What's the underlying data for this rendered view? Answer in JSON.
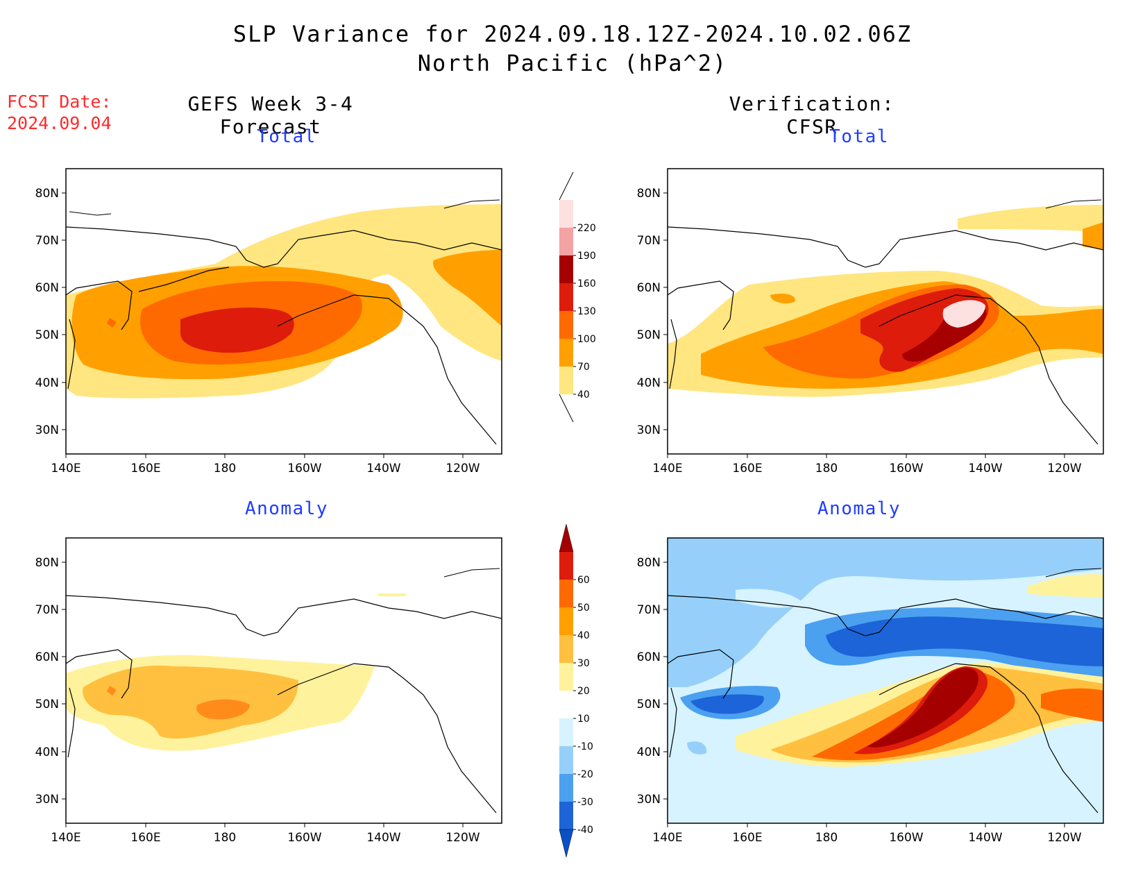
{
  "header": {
    "title_line1": "SLP Variance for 2024.09.18.12Z-2024.10.02.06Z",
    "title_line2": "North Pacific (hPa^2)",
    "fcst_label": "FCST Date:",
    "fcst_date": "2024.09.04"
  },
  "columns": {
    "left_title": "GEFS Week 3-4 Forecast",
    "right_title": "Verification: CFSR"
  },
  "panels": {
    "total_label": "Total",
    "anomaly_label": "Anomaly"
  },
  "axes": {
    "lat_ticks": [
      "80N",
      "70N",
      "60N",
      "50N",
      "40N",
      "30N"
    ],
    "lon_ticks": [
      "140E",
      "160E",
      "180",
      "160W",
      "140W",
      "120W"
    ]
  },
  "colorbars": {
    "total": {
      "levels": [
        "220",
        "190",
        "160",
        "130",
        "100",
        "70",
        "40"
      ],
      "colors": [
        "#fde0e0",
        "#f4a3a3",
        "#a60000",
        "#dd1c0c",
        "#ff6a00",
        "#ffa000",
        "#ffe680"
      ]
    },
    "anomaly": {
      "levels": [
        "60",
        "50",
        "40",
        "30",
        "20",
        "10",
        "-10",
        "-20",
        "-30",
        "-40"
      ],
      "colors": [
        "#a50000",
        "#dd1c0c",
        "#ff6a00",
        "#ffa000",
        "#ffc040",
        "#fff29c",
        "#ffffff",
        "#d7f3ff",
        "#96d0fa",
        "#4ba0f0",
        "#1c64d8",
        "#0a50c8"
      ]
    }
  },
  "palette": {
    "title_red": "#ff2a2a",
    "sub_title_blue": "#1f3cff"
  }
}
